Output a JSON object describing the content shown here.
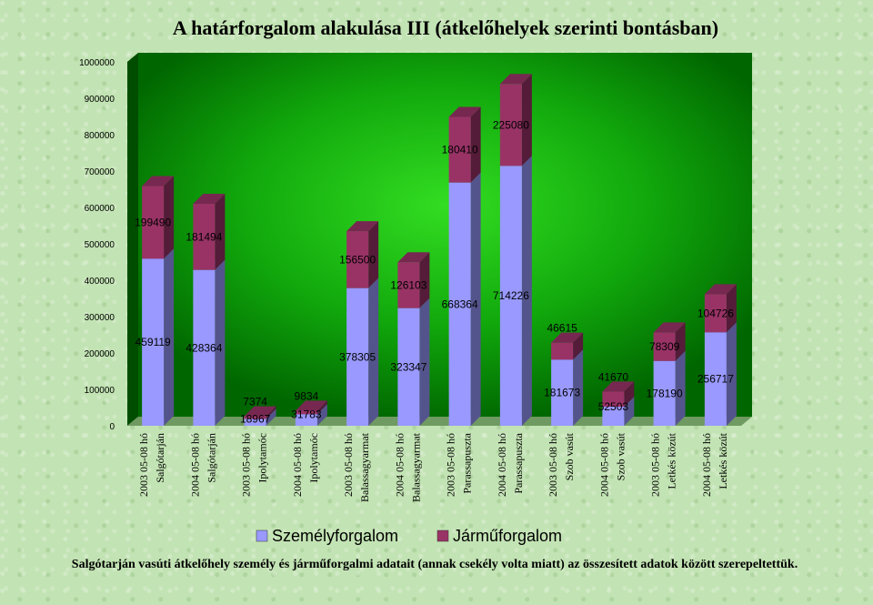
{
  "chart_data": {
    "type": "bar",
    "stacked": true,
    "title": "A határforgalom alakulása III (átkelőhelyek szerinti bontásban)",
    "ylim": [
      0,
      1000000
    ],
    "yticks": [
      "0",
      "100000",
      "200000",
      "300000",
      "400000",
      "500000",
      "600000",
      "700000",
      "800000",
      "900000",
      "1000000"
    ],
    "categories": [
      [
        "2003 05-08 hó",
        "Salgótarján"
      ],
      [
        "2004 05-08 hó",
        "Salgótarján"
      ],
      [
        "2003 05-08 hó",
        "Ipolytamóc"
      ],
      [
        "2004 05-08 hó",
        "Ipolytamóc"
      ],
      [
        "2003 05-08 hó",
        "Balassagyarmat"
      ],
      [
        "2004 05-08 hó",
        "Balassagyarmat"
      ],
      [
        "2003 05-08 hó",
        "Parassapuszta"
      ],
      [
        "2004 05-08 hó",
        "Parassapuszta"
      ],
      [
        "2003 05-08 hó",
        "Szob vasút"
      ],
      [
        "2004 05-08 hó",
        "Szob vasút"
      ],
      [
        "2003 05-08 hó",
        "Letkés közút"
      ],
      [
        "2004 05-08 hó",
        "Letkés közút"
      ]
    ],
    "series": [
      {
        "name": "Személyforgalom",
        "color": "#9999ff",
        "values": [
          459119,
          428364,
          18967,
          31783,
          378305,
          323347,
          668364,
          714226,
          181673,
          52503,
          178190,
          256717
        ]
      },
      {
        "name": "Járműforgalom",
        "color": "#993366",
        "values": [
          199490,
          181494,
          7374,
          9834,
          156500,
          126103,
          180410,
          225080,
          46615,
          41670,
          78309,
          104726
        ]
      }
    ],
    "legend": "bottom",
    "footnote": "Salgótarján vasúti átkelőhely személy és járműforgalmi adatait (annak csekély volta miatt) az összesített adatok között szerepeltettük."
  },
  "colors": {
    "plot_back": "#006600",
    "plot_glow": "#33dd22",
    "side_wall": "#004d00"
  }
}
